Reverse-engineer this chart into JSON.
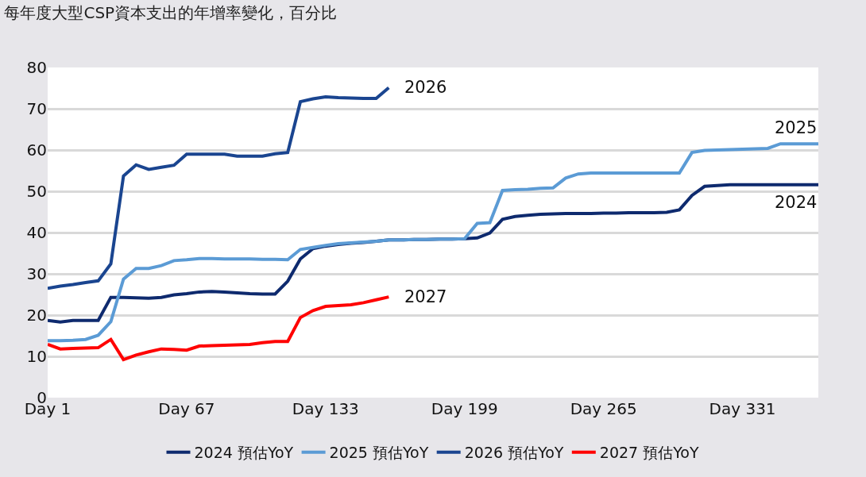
{
  "chart_data": {
    "type": "line",
    "title": "每年度大型CSP資本支出的年增率變化，百分比",
    "categories": [
      "Day 1",
      null,
      null,
      null,
      null,
      null,
      null,
      null,
      null,
      null,
      null,
      "Day 67",
      null,
      null,
      null,
      null,
      null,
      null,
      null,
      null,
      null,
      null,
      "Day 133",
      null,
      null,
      null,
      null,
      null,
      null,
      null,
      null,
      null,
      null,
      "Day 199",
      null,
      null,
      null,
      null,
      null,
      null,
      null,
      null,
      null,
      null,
      "Day 265",
      null,
      null,
      null,
      null,
      null,
      null,
      null,
      null,
      null,
      null,
      "Day 331",
      null,
      null,
      null,
      null,
      null,
      null
    ],
    "ylim": [
      0,
      80
    ],
    "yticks": [
      0,
      10,
      20,
      30,
      40,
      50,
      60,
      70,
      80
    ],
    "grid": "y",
    "legend": "bottom",
    "marker": "none",
    "line_style": "solid",
    "series": [
      {
        "name": "2024 預估YoY",
        "color": "#0e2a6e",
        "values": [
          18.7,
          18.3,
          18.7,
          18.7,
          18.7,
          24.3,
          24.3,
          24.2,
          24.1,
          24.3,
          24.9,
          25.2,
          25.6,
          25.7,
          25.6,
          25.4,
          25.2,
          25.1,
          25.1,
          28.2,
          33.6,
          36.1,
          36.7,
          37.1,
          37.4,
          37.6,
          37.9,
          38.2,
          38.2,
          38.3,
          38.3,
          38.4,
          38.4,
          38.5,
          38.7,
          39.9,
          43.2,
          43.9,
          44.2,
          44.4,
          44.5,
          44.6,
          44.6,
          44.6,
          44.7,
          44.7,
          44.8,
          44.8,
          44.8,
          44.9,
          45.5,
          49.0,
          51.2,
          51.4,
          51.6,
          51.6,
          51.6,
          51.6,
          51.6,
          51.6,
          51.6,
          51.6
        ]
      },
      {
        "name": "2025 預估YoY",
        "color": "#5b9bd5",
        "values": [
          13.8,
          13.8,
          13.9,
          14.1,
          15.1,
          18.4,
          28.7,
          31.3,
          31.3,
          32.0,
          33.2,
          33.4,
          33.7,
          33.7,
          33.6,
          33.6,
          33.6,
          33.5,
          33.5,
          33.4,
          35.9,
          36.4,
          36.9,
          37.3,
          37.5,
          37.7,
          37.9,
          38.2,
          38.2,
          38.3,
          38.3,
          38.4,
          38.4,
          38.5,
          42.2,
          42.4,
          50.2,
          50.4,
          50.5,
          50.7,
          50.8,
          53.2,
          54.2,
          54.4,
          54.4,
          54.4,
          54.4,
          54.4,
          54.4,
          54.4,
          54.4,
          59.4,
          59.9,
          60.0,
          60.1,
          60.2,
          60.3,
          60.4,
          61.5,
          61.5,
          61.5,
          61.5
        ]
      },
      {
        "name": "2026 預估YoY",
        "color": "#1a4590",
        "values": [
          26.5,
          27.0,
          27.4,
          27.9,
          28.3,
          32.4,
          53.7,
          56.4,
          55.3,
          55.8,
          56.3,
          59.0,
          59.0,
          59.0,
          59.0,
          58.5,
          58.5,
          58.5,
          59.1,
          59.4,
          71.7,
          72.4,
          72.9,
          72.7,
          72.6,
          72.5,
          72.5,
          75.1,
          null,
          null,
          null,
          null,
          null,
          null,
          null,
          null,
          null,
          null,
          null,
          null,
          null,
          null,
          null,
          null,
          null,
          null,
          null,
          null,
          null,
          null,
          null,
          null,
          null,
          null,
          null,
          null,
          null,
          null,
          null,
          null,
          null,
          null
        ]
      },
      {
        "name": "2027 預估YoY",
        "color": "#ff0000",
        "values": [
          12.9,
          11.8,
          11.9,
          12.0,
          12.1,
          14.1,
          9.2,
          10.3,
          11.1,
          11.8,
          11.7,
          11.5,
          12.5,
          12.6,
          12.7,
          12.8,
          12.9,
          13.3,
          13.6,
          13.6,
          19.4,
          21.1,
          22.1,
          22.3,
          22.5,
          23.0,
          23.7,
          24.4,
          null,
          null,
          null,
          null,
          null,
          null,
          null,
          null,
          null,
          null,
          null,
          null,
          null,
          null,
          null,
          null,
          null,
          null,
          null,
          null,
          null,
          null,
          null,
          null,
          null,
          null,
          null,
          null,
          null,
          null,
          null,
          null,
          null,
          null
        ]
      }
    ],
    "annotations": [
      "2024",
      "2025",
      "2026",
      "2027"
    ]
  }
}
